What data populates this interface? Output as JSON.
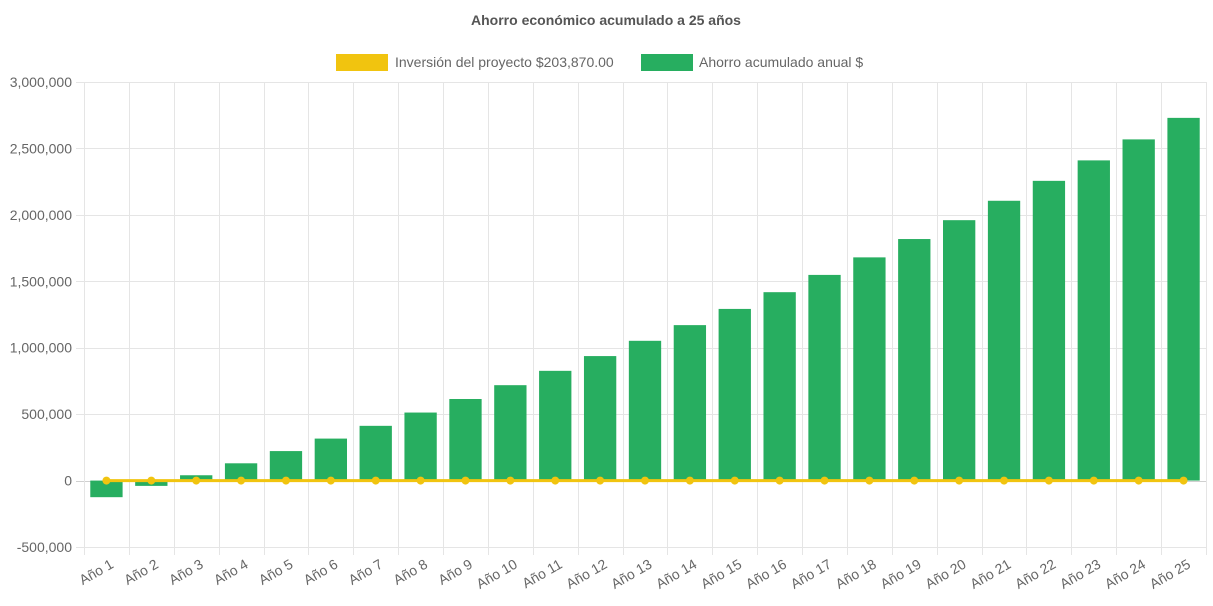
{
  "chart_data": {
    "type": "bar",
    "title": "Ahorro económico acumulado a 25 años",
    "categories": [
      "Año 1",
      "Año 2",
      "Año 3",
      "Año 4",
      "Año 5",
      "Año 6",
      "Año 7",
      "Año 8",
      "Año 9",
      "Año 10",
      "Año 11",
      "Año 12",
      "Año 13",
      "Año 14",
      "Año 15",
      "Año 16",
      "Año 17",
      "Año 18",
      "Año 19",
      "Año 20",
      "Año 21",
      "Año 22",
      "Año 23",
      "Año 24",
      "Año 25"
    ],
    "series": [
      {
        "name": "Inversión del proyecto $203,870.00",
        "kind": "line",
        "color": "#f1c40f",
        "values": [
          0,
          0,
          0,
          0,
          0,
          0,
          0,
          0,
          0,
          0,
          0,
          0,
          0,
          0,
          0,
          0,
          0,
          0,
          0,
          0,
          0,
          0,
          0,
          0,
          0
        ]
      },
      {
        "name": "Ahorro acumulado anual $",
        "kind": "bar",
        "color": "#27ae60",
        "values": [
          -125000,
          -40000,
          40000,
          130000,
          222000,
          316000,
          412000,
          512000,
          614000,
          718000,
          826000,
          937000,
          1052000,
          1170000,
          1292000,
          1418000,
          1548000,
          1680000,
          1818000,
          1960000,
          2106000,
          2256000,
          2410000,
          2568000,
          2730000
        ]
      }
    ],
    "ylim": [
      -500000,
      3000000
    ],
    "yticks": [
      "3,000,000",
      "2,500,000",
      "2,000,000",
      "1,500,000",
      "1,000,000",
      "500,000",
      "0",
      "-500,000"
    ],
    "ytick_values": [
      3000000,
      2500000,
      2000000,
      1500000,
      1000000,
      500000,
      0,
      -500000
    ],
    "xlabel": "",
    "ylabel": "",
    "grid": true,
    "legend_position": "top-center"
  }
}
